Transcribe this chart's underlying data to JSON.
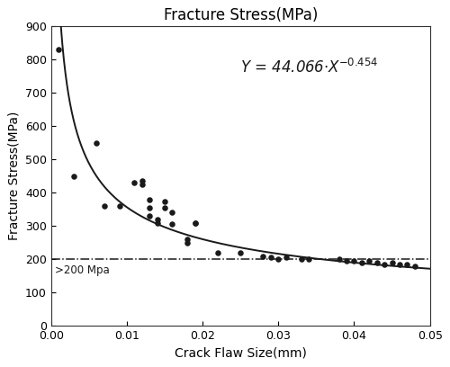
{
  "title": "Fracture Stress(MPa)",
  "xlabel": "Crack Flaw Size(mm)",
  "ylabel": "Fracture Stress(MPa)",
  "hline_y": 200,
  "hline_label": ">200 Mpa",
  "xlim": [
    0,
    0.05
  ],
  "ylim": [
    0,
    900
  ],
  "yticks": [
    0,
    100,
    200,
    300,
    400,
    500,
    600,
    700,
    800,
    900
  ],
  "xticks": [
    0,
    0.01,
    0.02,
    0.03,
    0.04,
    0.05
  ],
  "data_x": [
    0.001,
    0.003,
    0.006,
    0.007,
    0.009,
    0.011,
    0.012,
    0.012,
    0.013,
    0.013,
    0.013,
    0.014,
    0.014,
    0.015,
    0.015,
    0.016,
    0.016,
    0.018,
    0.018,
    0.019,
    0.019,
    0.022,
    0.025,
    0.028,
    0.029,
    0.03,
    0.031,
    0.033,
    0.034,
    0.038,
    0.039,
    0.04,
    0.041,
    0.042,
    0.043,
    0.044,
    0.045,
    0.046,
    0.047,
    0.048
  ],
  "data_y": [
    830,
    450,
    550,
    360,
    360,
    430,
    435,
    425,
    380,
    355,
    330,
    320,
    310,
    375,
    355,
    340,
    305,
    260,
    250,
    310,
    310,
    220,
    220,
    210,
    205,
    200,
    205,
    200,
    200,
    200,
    195,
    195,
    190,
    195,
    190,
    185,
    190,
    185,
    185,
    180
  ],
  "fit_a": 44.066,
  "fit_b": -0.454,
  "dot_color": "#1a1a1a",
  "line_color": "#1a1a1a",
  "hline_color": "#1a1a1a",
  "title_fontsize": 12,
  "label_fontsize": 10,
  "tick_fontsize": 9,
  "eq_fontsize": 12
}
